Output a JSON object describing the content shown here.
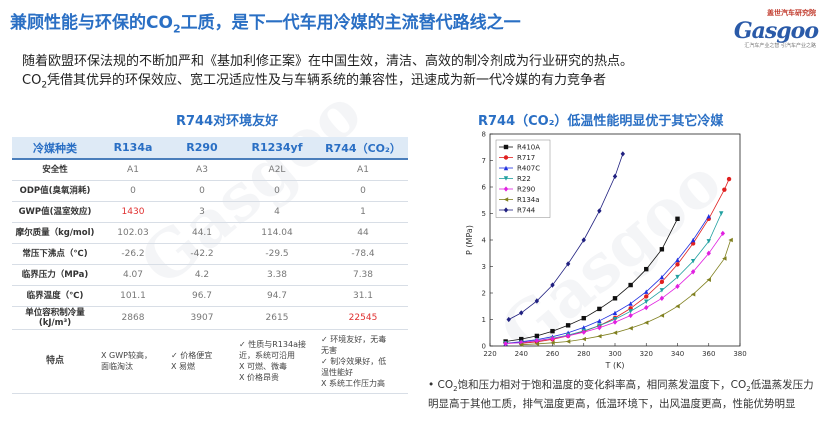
{
  "header": {
    "title_main": "兼顾性能与环保的CO",
    "title_sub": "2",
    "title_rest": "工质，是下一代车用冷媒的主流替代路线之一"
  },
  "logo": {
    "brand": "Gasgoo",
    "top_text": "盖世汽车研究院",
    "sub_text": "汇汽车产业之智 引汽车产业之路"
  },
  "intro": {
    "line1": "随着欧盟环保法规的不断加严和《基加利修正案》在中国生效，清洁、高效的制冷剂成为行业研究的热点。",
    "line2_a": "CO",
    "line2_sub": "2",
    "line2_b": "凭借其优异的环保效应、宽工况适应性及与车辆系统的兼容性，迅速成为新一代冷媒的有力竞争者"
  },
  "table_section": {
    "title": "R744对环境友好",
    "headers": [
      "冷媒种类",
      "R134a",
      "R290",
      "R1234yf",
      "R744（CO₂）"
    ],
    "rows": [
      {
        "label": "安全性",
        "cells": [
          "A1",
          "A3",
          "A2L",
          "A1"
        ]
      },
      {
        "label": "ODP值(臭氧消耗)",
        "cells": [
          "0",
          "0",
          "0",
          "0"
        ]
      },
      {
        "label": "GWP值(温室效应)",
        "cells": [
          "1430",
          "3",
          "4",
          "1"
        ]
      },
      {
        "label": "摩尔质量（kg/mol)",
        "cells": [
          "102.03",
          "44.1",
          "114.04",
          "44"
        ]
      },
      {
        "label": "常压下沸点（℃)",
        "cells": [
          "-26.2",
          "-42.2",
          "-29.5",
          "-78.4"
        ]
      },
      {
        "label": "临界压力（MPa)",
        "cells": [
          "4.07",
          "4.2",
          "3.38",
          "7.38"
        ]
      },
      {
        "label": "临界温度（℃)",
        "cells": [
          "101.1",
          "96.7",
          "94.7",
          "31.1"
        ]
      },
      {
        "label": "单位容积制冷量",
        "label2": "(kJ/m³)",
        "cells": [
          "2868",
          "3907",
          "2615",
          "22545"
        ]
      }
    ],
    "features": {
      "label": "特点",
      "cells": [
        [
          "X  GWP较高，",
          "   面临淘汰"
        ],
        [
          "✓ 价格便宜",
          "X  易燃"
        ],
        [
          "✓ 性质与R134a接",
          "   近，系统可沿用",
          "X  可燃、微毒",
          "X  价格昂贵"
        ],
        [
          "✓ 环境友好，无毒",
          "   无害",
          "✓ 制冷效果好，低",
          "   温性能好",
          "X  系统工作压力高"
        ]
      ]
    }
  },
  "chart_section": {
    "title": "R744（CO₂）低温性能明显优于其它冷媒"
  },
  "chart_data": {
    "type": "scatter",
    "xlabel": "T (K)",
    "ylabel": "P (MPa)",
    "xlim": [
      220,
      380
    ],
    "ylim": [
      0,
      8
    ],
    "xticks": [
      "220",
      "240",
      "260",
      "280",
      "300",
      "320",
      "340",
      "360",
      "380"
    ],
    "yticks": [
      "0",
      "1",
      "2",
      "3",
      "4",
      "5",
      "6",
      "7",
      "8"
    ],
    "legend_position": "top-left",
    "series": [
      {
        "name": "R410A",
        "marker": "square",
        "color": "#111111",
        "x": [
          230,
          240,
          250,
          260,
          270,
          280,
          290,
          300,
          310,
          320,
          330,
          340
        ],
        "y": [
          0.17,
          0.26,
          0.38,
          0.56,
          0.78,
          1.05,
          1.4,
          1.8,
          2.3,
          2.9,
          3.65,
          4.8
        ]
      },
      {
        "name": "R717",
        "marker": "circle",
        "color": "#e02020",
        "x": [
          240,
          250,
          260,
          270,
          280,
          290,
          300,
          310,
          320,
          330,
          340,
          350,
          360,
          370,
          373
        ],
        "y": [
          0.1,
          0.16,
          0.25,
          0.38,
          0.55,
          0.77,
          1.06,
          1.42,
          1.87,
          2.42,
          3.08,
          3.87,
          4.8,
          5.9,
          6.3
        ]
      },
      {
        "name": "R407C",
        "marker": "triangle-up",
        "color": "#2030e0",
        "x": [
          230,
          240,
          250,
          260,
          270,
          280,
          290,
          300,
          310,
          320,
          330,
          340,
          350,
          360
        ],
        "y": [
          0.1,
          0.16,
          0.24,
          0.35,
          0.5,
          0.7,
          0.95,
          1.25,
          1.6,
          2.05,
          2.6,
          3.25,
          4.0,
          4.9
        ]
      },
      {
        "name": "R22",
        "marker": "triangle-down",
        "color": "#20a0a0",
        "x": [
          230,
          240,
          250,
          260,
          270,
          280,
          290,
          300,
          310,
          320,
          330,
          340,
          350,
          360,
          368
        ],
        "y": [
          0.1,
          0.13,
          0.2,
          0.29,
          0.41,
          0.57,
          0.77,
          1.01,
          1.31,
          1.67,
          2.1,
          2.6,
          3.2,
          3.95,
          5.0
        ]
      },
      {
        "name": "R290",
        "marker": "diamond",
        "color": "#e020e0",
        "x": [
          230,
          240,
          250,
          260,
          270,
          280,
          290,
          300,
          310,
          320,
          330,
          340,
          350,
          360,
          369
        ],
        "y": [
          0.09,
          0.13,
          0.2,
          0.28,
          0.38,
          0.52,
          0.69,
          0.9,
          1.15,
          1.45,
          1.8,
          2.25,
          2.8,
          3.5,
          4.25
        ]
      },
      {
        "name": "R134a",
        "marker": "triangle-left",
        "color": "#808020",
        "x": [
          240,
          250,
          260,
          270,
          280,
          290,
          300,
          310,
          320,
          330,
          340,
          350,
          360,
          370,
          374
        ],
        "y": [
          0.05,
          0.08,
          0.12,
          0.17,
          0.26,
          0.37,
          0.5,
          0.67,
          0.88,
          1.15,
          1.5,
          1.95,
          2.5,
          3.3,
          4.0
        ]
      },
      {
        "name": "R744",
        "marker": "diamond",
        "color": "#202080",
        "x": [
          232,
          240,
          250,
          260,
          270,
          280,
          290,
          300,
          305
        ],
        "y": [
          1.0,
          1.25,
          1.7,
          2.3,
          3.1,
          4.0,
          5.1,
          6.4,
          7.25
        ]
      }
    ]
  },
  "bullet": {
    "a": "• CO",
    "a_sub": "2",
    "b": "饱和压力相对于饱和温度的变化斜率高，相同蒸发温度下，CO",
    "b_sub": "2",
    "c": "低温蒸发压力明显高于其他工质，排气温度更高，低温环境下，出风温度更高，性能优势明显"
  }
}
